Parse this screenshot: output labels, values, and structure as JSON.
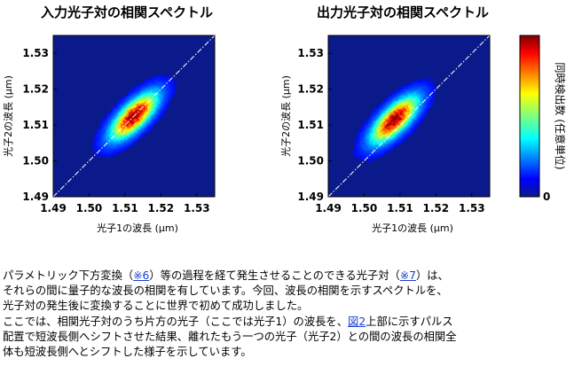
{
  "chart_data": [
    {
      "type": "heatmap",
      "title": "入力光子対の相関スペクトル",
      "xlabel": "光子1の波長 (μm)",
      "ylabel": "光子2の波長 (μm)",
      "xlim": [
        1.49,
        1.535
      ],
      "ylim": [
        1.49,
        1.535
      ],
      "x_ticks": [
        "1.49",
        "1.50",
        "1.51",
        "1.52",
        "1.53"
      ],
      "y_ticks": [
        "1.49",
        "1.50",
        "1.51",
        "1.52",
        "1.53"
      ],
      "peak": {
        "x": 1.5125,
        "y": 1.5125
      },
      "sigma_along_diagonal": 0.0055,
      "sigma_across_diagonal": 0.0022,
      "diagonal_reference_line": true
    },
    {
      "type": "heatmap",
      "title": "出力光子対の相関スペクトル",
      "xlabel": "光子1の波長 (μm)",
      "ylabel": "光子2の波長 (μm)",
      "xlim": [
        1.49,
        1.535
      ],
      "ylim": [
        1.49,
        1.535
      ],
      "x_ticks": [
        "1.49",
        "1.50",
        "1.51",
        "1.52",
        "1.53"
      ],
      "y_ticks": [
        "1.49",
        "1.50",
        "1.51",
        "1.52",
        "1.53"
      ],
      "peak": {
        "x": 1.5085,
        "y": 1.5115
      },
      "sigma_along_diagonal": 0.0055,
      "sigma_across_diagonal": 0.0022,
      "diagonal_reference_line": true
    }
  ],
  "colorbar": {
    "label": "同時検出数 (任意単位)",
    "min_label": "0",
    "colormap": "jet"
  },
  "colors": {
    "plot_background": "#0b1a8a",
    "link": "#1a3fcf"
  },
  "description": {
    "line1_before": "パラメトリック下方変換（",
    "link_6": "※6",
    "line1_middle": "）等の過程を経て発生させることのできる光子対（",
    "link_7": "※7",
    "line1_after": "）は、",
    "line2": "それらの間に量子的な波長の相関を有しています。今回、波長の相関を示すスペクトルを、",
    "line3": "光子対の発生後に変換することに世界で初めて成功しました。",
    "line4_before": "ここでは、相関光子対のうち片方の光子（ここでは光子1）の波長を、",
    "link_fig2": "図2",
    "line4_after": "上部に示すパルス",
    "line5": "配置で短波長側へシフトさせた結果、離れたもう一つの光子（光子2）との間の波長の相関全",
    "line6": "体も短波長側へとシフトした様子を示しています。"
  }
}
